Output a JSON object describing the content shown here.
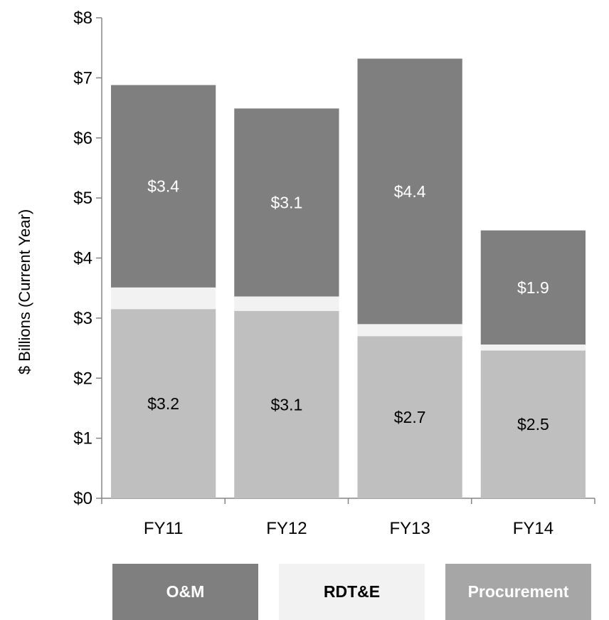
{
  "chart_data": {
    "type": "bar",
    "stacked": true,
    "categories": [
      "FY11",
      "FY12",
      "FY13",
      "FY14"
    ],
    "series": [
      {
        "name": "Procurement",
        "values": [
          3.15,
          3.12,
          2.7,
          2.46
        ],
        "label_text": [
          "$3.2",
          "$3.1",
          "$2.7",
          "$2.5"
        ],
        "color": "#bfbfbf",
        "label_color": "#000000"
      },
      {
        "name": "RDT&E",
        "values": [
          0.36,
          0.24,
          0.2,
          0.1
        ],
        "label_text": [
          "",
          "",
          "",
          ""
        ],
        "color": "#f2f2f2",
        "label_color": "#000000"
      },
      {
        "name": "O&M",
        "values": [
          3.37,
          3.13,
          4.42,
          1.9
        ],
        "label_text": [
          "$3.4",
          "$3.1",
          "$4.4",
          "$1.9"
        ],
        "color": "#7f7f7f",
        "label_color": "#ffffff"
      }
    ],
    "ylabel": "$ Billions (Current Year)",
    "ylim": [
      0,
      8
    ],
    "yticks": [
      {
        "value": 0,
        "label": "$0"
      },
      {
        "value": 1,
        "label": "$1"
      },
      {
        "value": 2,
        "label": "$2"
      },
      {
        "value": 3,
        "label": "$3"
      },
      {
        "value": 4,
        "label": "$4"
      },
      {
        "value": 5,
        "label": "$5"
      },
      {
        "value": 6,
        "label": "$6"
      },
      {
        "value": 7,
        "label": "$7"
      },
      {
        "value": 8,
        "label": "$8"
      }
    ],
    "grid": false,
    "legend": {
      "position": "bottom",
      "items": [
        {
          "label": "O&M",
          "color": "#7f7f7f",
          "text_color": "#ffffff"
        },
        {
          "label": "RDT&E",
          "color": "#f2f2f2",
          "text_color": "#000000"
        },
        {
          "label": "Procurement",
          "color": "#a6a6a6",
          "text_color": "#ffffff"
        }
      ]
    }
  }
}
